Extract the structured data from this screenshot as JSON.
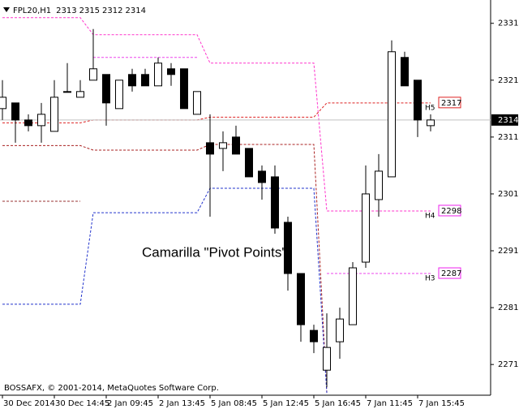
{
  "chart_data": {
    "type": "candlestick",
    "symbol": "FPL20,H1",
    "annotation": "Camarilla \"Pivot Points\"",
    "footer": "BOSSAFX, © 2001-2014, MetaQuotes Software Corp.",
    "categories": [
      "30 Dec 2014",
      null,
      null,
      null,
      "30 Dec 14:45",
      null,
      null,
      null,
      "2 Jan 09:45",
      null,
      null,
      null,
      "2 Jan 13:45",
      null,
      null,
      null,
      "5 Jan 08:45",
      null,
      null,
      null,
      "5 Jan 12:45",
      null,
      null,
      null,
      "5 Jan 16:45",
      null,
      null,
      null,
      "7 Jan 11:45",
      null,
      null,
      null,
      "7 Jan 15:45",
      null
    ],
    "open": [
      2316,
      2317,
      2314,
      2313,
      2312,
      2319,
      2318,
      2321,
      2322,
      2316,
      2322,
      2322,
      2320,
      2323,
      2323,
      2315,
      2310,
      2309,
      2311,
      2309,
      2305,
      2304,
      2296,
      2287,
      2277,
      2270,
      2275,
      2278,
      2289,
      2300,
      2304,
      2325,
      2321,
      2313
    ],
    "high": [
      2321,
      2317,
      2315,
      2317,
      2321,
      2324,
      2321,
      2330,
      2322,
      2321,
      2323,
      2323,
      2325,
      2324,
      2323,
      2319,
      2315,
      2312,
      2313,
      2309,
      2306,
      2306,
      2297,
      2287,
      2278,
      2280,
      2281,
      2289,
      2306,
      2308,
      2328,
      2326,
      2321,
      2315
    ],
    "low": [
      2314,
      2310,
      2312,
      2310,
      2312,
      2319,
      2318,
      2321,
      2313,
      2316,
      2319,
      2320,
      2320,
      2320,
      2316,
      2315,
      2297,
      2305,
      2308,
      2304,
      2300,
      2294,
      2284,
      2275,
      2273,
      2267,
      2272,
      2278,
      2288,
      2297,
      2304,
      2320,
      2311,
      2312
    ],
    "close": [
      2318,
      2314,
      2313,
      2315,
      2318,
      2319,
      2319,
      2323,
      2317,
      2321,
      2320,
      2320,
      2324,
      2322,
      2316,
      2319,
      2308,
      2310,
      2308,
      2304,
      2303,
      2295,
      2287,
      2278,
      2275,
      2274,
      2279,
      2288,
      2301,
      2305,
      2326,
      2320,
      2314,
      2314
    ],
    "bull_color": "#ffffff",
    "bear_color": "#000000",
    "pivot_lines": [
      {
        "color": "#ff33cc",
        "values": [
          2332,
          2332,
          2332,
          2332,
          2332,
          2332,
          2332,
          2329,
          2329,
          2329,
          2329,
          2329,
          2329,
          2329,
          2329,
          2329,
          2324,
          2324,
          2324,
          2324,
          2324,
          2324,
          2324,
          2324,
          2324,
          2298,
          2298,
          2298,
          2298,
          2298,
          2298,
          2298,
          2298,
          2298
        ]
      },
      {
        "color": "#ee44ee",
        "values": [
          null,
          null,
          null,
          null,
          null,
          null,
          null,
          2325,
          2325,
          2325,
          2325,
          2325,
          2325,
          2325,
          2325,
          2325,
          null,
          null,
          null,
          null,
          null,
          null,
          null,
          null,
          null,
          2287,
          2287,
          2287,
          2287,
          2287,
          2287,
          2287,
          2287,
          2287
        ]
      },
      {
        "color": "#dd2222",
        "values": [
          2313.5,
          2313.5,
          2313.5,
          2313.5,
          2313.5,
          2313.5,
          2313.5,
          2314,
          2314,
          2314,
          2314,
          2314,
          2314,
          2314,
          2314,
          2314,
          2314.5,
          2314.5,
          2314.5,
          2314.5,
          2314.5,
          2314.5,
          2314.5,
          2314.5,
          2314.5,
          2317,
          2317,
          2317,
          2317,
          2317,
          2317,
          2317,
          2317,
          2317
        ]
      },
      {
        "color": "#aa2222",
        "values": [
          2309.5,
          2309.5,
          2309.5,
          2309.5,
          2309.5,
          2309.5,
          2309.5,
          2308.7,
          2308.7,
          2308.7,
          2308.7,
          2308.7,
          2308.7,
          2308.7,
          2308.7,
          2308.7,
          2309.7,
          2309.7,
          2309.7,
          2309.7,
          2309.7,
          2309.7,
          2309.7,
          2309.7,
          2309.7,
          2266,
          null,
          null,
          null,
          null,
          null,
          null,
          null,
          null
        ]
      },
      {
        "color": "#993333",
        "values": [
          2299.7,
          2299.7,
          2299.7,
          2299.7,
          2299.7,
          2299.7,
          2299.7,
          null,
          null,
          null,
          null,
          null,
          null,
          null,
          null,
          null,
          null,
          null,
          null,
          null,
          null,
          null,
          null,
          null,
          null,
          null,
          null,
          null,
          null,
          null,
          null,
          null,
          null,
          null
        ]
      },
      {
        "color": "#2233cc",
        "values": [
          2281.6,
          2281.6,
          2281.6,
          2281.6,
          2281.6,
          2281.6,
          2281.6,
          2297.7,
          2297.7,
          2297.7,
          2297.7,
          2297.7,
          2297.7,
          2297.7,
          2297.7,
          2297.7,
          2302,
          2302,
          2302,
          2302,
          2302,
          2302,
          2302,
          2302,
          2302,
          2266,
          null,
          null,
          null,
          null,
          null,
          null,
          null,
          null
        ]
      }
    ],
    "level_labels": [
      {
        "name": "H5",
        "value": 2317,
        "color": "#dd2222"
      },
      {
        "name": "H4",
        "value": 2298,
        "color": "#ee22ee"
      },
      {
        "name": "H3",
        "value": 2287,
        "color": "#ee22ee"
      }
    ],
    "ylim": [
      2265.6,
      2335.1
    ],
    "yticks": [
      2271,
      2281,
      2291,
      2301,
      2311,
      2321,
      2331
    ]
  }
}
